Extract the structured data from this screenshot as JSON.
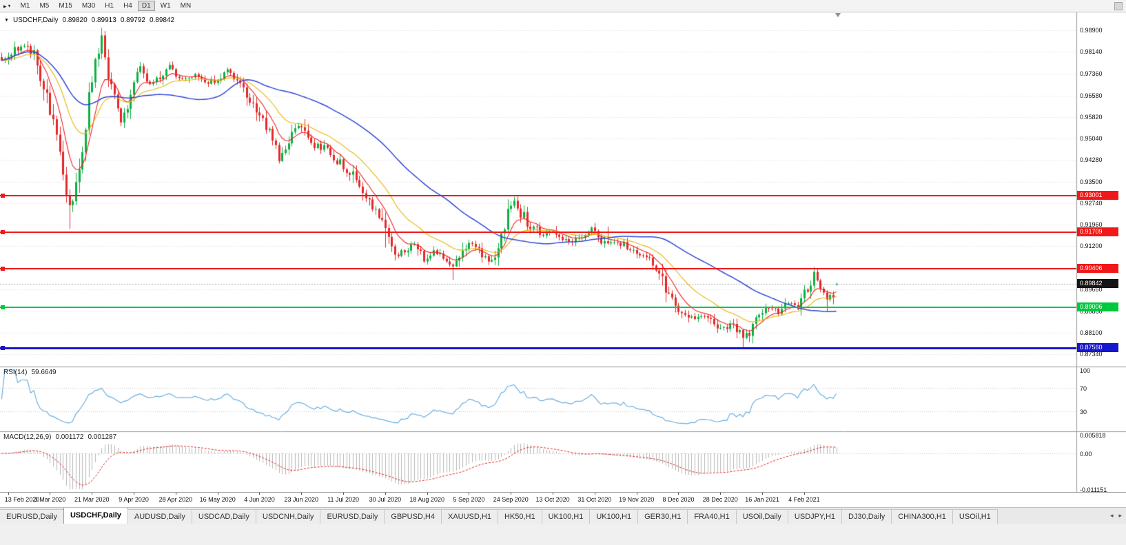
{
  "toolbar": {
    "timeframes": [
      "M1",
      "M5",
      "M15",
      "M30",
      "H1",
      "H4",
      "D1",
      "W1",
      "MN"
    ],
    "active_timeframe": "D1",
    "cursor_icon": "▸",
    "caret_icon": "▾"
  },
  "header": {
    "caret": "▼",
    "symbol": "USDCHF,Daily",
    "open": "0.89820",
    "high": "0.89913",
    "low": "0.89792",
    "close": "0.89842"
  },
  "main_axis": {
    "ticks": [
      "0.98900",
      "0.98140",
      "0.97360",
      "0.96580",
      "0.95820",
      "0.95040",
      "0.94280",
      "0.93500",
      "0.92740",
      "0.91960",
      "0.91200",
      "0.90420",
      "0.89660",
      "0.88880",
      "0.88100",
      "0.87340"
    ]
  },
  "levels": [
    {
      "label": "0.93001",
      "value": 0.93001,
      "color": "#f01818",
      "width": 2
    },
    {
      "label": "0.91709",
      "value": 0.91709,
      "color": "#f01818",
      "width": 2
    },
    {
      "label": "0.90406",
      "value": 0.90406,
      "color": "#f01818",
      "width": 2
    },
    {
      "label": "0.89006",
      "value": 0.89006,
      "color": "#00c83c",
      "width": 2
    },
    {
      "label": "0.87560",
      "value": 0.8756,
      "color": "#1616cc",
      "width": 3
    }
  ],
  "current_price": {
    "label": "0.89842",
    "value": 0.89842,
    "badge_color": "#151515"
  },
  "rsi": {
    "name": "RSI(14)",
    "value": "59.6649",
    "color": "#68aee0",
    "levels": [
      70,
      30
    ],
    "axis": [
      {
        "label": "100",
        "v": 100
      },
      {
        "label": "70",
        "v": 70
      },
      {
        "label": "30",
        "v": 30
      }
    ]
  },
  "macd": {
    "name": "MACD(12,26,9)",
    "value_main": "0.001172",
    "value_signal": "0.001287",
    "hist_color": "#b6b6b6",
    "signal_color": "#e02020",
    "axis": [
      {
        "label": "0.005818",
        "v": 0.005818
      },
      {
        "label": "0.00",
        "v": 0
      },
      {
        "label": "-0.011151",
        "v": -0.011151
      }
    ]
  },
  "dates": [
    "13 Feb 2020",
    "3 Mar 2020",
    "21 Mar 2020",
    "9 Apr 2020",
    "28 Apr 2020",
    "16 May 2020",
    "4 Jun 2020",
    "23 Jun 2020",
    "11 Jul 2020",
    "30 Jul 2020",
    "18 Aug 2020",
    "5 Sep 2020",
    "24 Sep 2020",
    "13 Oct 2020",
    "31 Oct 2020",
    "19 Nov 2020",
    "8 Dec 2020",
    "28 Dec 2020",
    "16 Jan 2021",
    "4 Feb 2021"
  ],
  "tabs": {
    "items": [
      {
        "label": "EURUSD,Daily",
        "active": false
      },
      {
        "label": "USDCHF,Daily",
        "active": true
      },
      {
        "label": "AUDUSD,Daily",
        "active": false
      },
      {
        "label": "USDCAD,Daily",
        "active": false
      },
      {
        "label": "USDCNH,Daily",
        "active": false
      },
      {
        "label": "EURUSD,Daily",
        "active": false
      },
      {
        "label": "GBPUSD,H4",
        "active": false
      },
      {
        "label": "XAUUSD,H1",
        "active": false
      },
      {
        "label": "HK50,H1",
        "active": false
      },
      {
        "label": "UK100,H1",
        "active": false
      },
      {
        "label": "UK100,H1",
        "active": false
      },
      {
        "label": "GER30,H1",
        "active": false
      },
      {
        "label": "FRA40,H1",
        "active": false
      },
      {
        "label": "USOil,Daily",
        "active": false
      },
      {
        "label": "USDJPY,H1",
        "active": false
      },
      {
        "label": "DJ30,Daily",
        "active": false
      },
      {
        "label": "CHINA300,H1",
        "active": false
      },
      {
        "label": "USOil,H1",
        "active": false
      }
    ],
    "scroll_left": "◂",
    "scroll_right": "▸"
  },
  "chart_data": {
    "type": "candlestick",
    "title": "USDCHF,Daily",
    "symbol": "USDCHF",
    "timeframe": "Daily",
    "current_ohlc": {
      "open": 0.8982,
      "high": 0.89913,
      "low": 0.89792,
      "close": 0.89842
    },
    "ylim": [
      0.869,
      0.9955
    ],
    "candle_count": 260,
    "x_tick_labels": [
      "13 Feb 2020",
      "3 Mar 2020",
      "21 Mar 2020",
      "9 Apr 2020",
      "28 Apr 2020",
      "16 May 2020",
      "4 Jun 2020",
      "23 Jun 2020",
      "11 Jul 2020",
      "30 Jul 2020",
      "18 Aug 2020",
      "5 Sep 2020",
      "24 Sep 2020",
      "13 Oct 2020",
      "31 Oct 2020",
      "19 Nov 2020",
      "8 Dec 2020",
      "28 Dec 2020",
      "16 Jan 2021",
      "4 Feb 2021"
    ],
    "x_tick_candle_indices": [
      2,
      15,
      28,
      41,
      54,
      67,
      80,
      93,
      106,
      119,
      132,
      145,
      158,
      171,
      184,
      197,
      210,
      223,
      236,
      249
    ],
    "price_path_anchors": [
      [
        0,
        0.978
      ],
      [
        3,
        0.9812
      ],
      [
        6,
        0.9835
      ],
      [
        8,
        0.9842
      ],
      [
        10,
        0.98
      ],
      [
        12,
        0.971
      ],
      [
        14,
        0.964
      ],
      [
        16,
        0.957
      ],
      [
        18,
        0.948
      ],
      [
        20,
        0.933
      ],
      [
        21,
        0.926
      ],
      [
        22,
        0.93
      ],
      [
        23,
        0.934
      ],
      [
        25,
        0.948
      ],
      [
        27,
        0.964
      ],
      [
        29,
        0.979
      ],
      [
        31,
        0.9855
      ],
      [
        33,
        0.972
      ],
      [
        35,
        0.964
      ],
      [
        37,
        0.957
      ],
      [
        39,
        0.963
      ],
      [
        41,
        0.97
      ],
      [
        43,
        0.9755
      ],
      [
        46,
        0.97
      ],
      [
        49,
        0.9728
      ],
      [
        52,
        0.9768
      ],
      [
        56,
        0.9712
      ],
      [
        60,
        0.9735
      ],
      [
        64,
        0.97
      ],
      [
        67,
        0.9722
      ],
      [
        70,
        0.9745
      ],
      [
        74,
        0.9705
      ],
      [
        78,
        0.9625
      ],
      [
        80,
        0.96
      ],
      [
        83,
        0.9525
      ],
      [
        86,
        0.943
      ],
      [
        89,
        0.951
      ],
      [
        92,
        0.9555
      ],
      [
        96,
        0.9485
      ],
      [
        100,
        0.947
      ],
      [
        104,
        0.9425
      ],
      [
        108,
        0.9385
      ],
      [
        112,
        0.931
      ],
      [
        116,
        0.9255
      ],
      [
        119,
        0.916
      ],
      [
        122,
        0.9085
      ],
      [
        125,
        0.9105
      ],
      [
        128,
        0.9135
      ],
      [
        131,
        0.9065
      ],
      [
        134,
        0.9105
      ],
      [
        137,
        0.9085
      ],
      [
        140,
        0.9045
      ],
      [
        143,
        0.9095
      ],
      [
        145,
        0.913
      ],
      [
        148,
        0.9105
      ],
      [
        151,
        0.9065
      ],
      [
        154,
        0.9125
      ],
      [
        157,
        0.9235
      ],
      [
        159,
        0.9285
      ],
      [
        161,
        0.924
      ],
      [
        163,
        0.9205
      ],
      [
        165,
        0.9185
      ],
      [
        168,
        0.9155
      ],
      [
        171,
        0.918
      ],
      [
        174,
        0.9145
      ],
      [
        177,
        0.9132
      ],
      [
        180,
        0.9162
      ],
      [
        183,
        0.918
      ],
      [
        185,
        0.9152
      ],
      [
        188,
        0.9125
      ],
      [
        191,
        0.9138
      ],
      [
        194,
        0.9115
      ],
      [
        197,
        0.9102
      ],
      [
        200,
        0.9082
      ],
      [
        203,
        0.9045
      ],
      [
        206,
        0.8965
      ],
      [
        209,
        0.8905
      ],
      [
        212,
        0.8882
      ],
      [
        215,
        0.8855
      ],
      [
        218,
        0.8872
      ],
      [
        221,
        0.8845
      ],
      [
        224,
        0.8825
      ],
      [
        227,
        0.8845
      ],
      [
        230,
        0.8795
      ],
      [
        232,
        0.8815
      ],
      [
        235,
        0.8872
      ],
      [
        238,
        0.8902
      ],
      [
        241,
        0.8885
      ],
      [
        244,
        0.8922
      ],
      [
        247,
        0.8905
      ],
      [
        250,
        0.8965
      ],
      [
        252,
        0.9028
      ],
      [
        254,
        0.8992
      ],
      [
        256,
        0.8935
      ],
      [
        258,
        0.8952
      ],
      [
        259,
        0.89842
      ]
    ],
    "spikes": [
      {
        "i": 8,
        "high": 0.9852
      },
      {
        "i": 21,
        "low": 0.9182
      },
      {
        "i": 31,
        "high": 0.989
      },
      {
        "i": 119,
        "low": 0.9115
      },
      {
        "i": 140,
        "low": 0.9
      },
      {
        "i": 159,
        "high": 0.9296
      },
      {
        "i": 188,
        "high": 0.919
      },
      {
        "i": 230,
        "low": 0.8757
      },
      {
        "i": 252,
        "high": 0.9046
      },
      {
        "i": 256,
        "low": 0.8888
      }
    ],
    "horizontal_levels": [
      0.93001,
      0.91709,
      0.90406,
      0.89006,
      0.8756
    ],
    "moving_averages": [
      {
        "type": "ema",
        "period": 8,
        "color": "#f02020"
      },
      {
        "type": "ema",
        "period": 20,
        "color": "#e8b400"
      },
      {
        "type": "sma",
        "period": 50,
        "color": "#3048d8"
      }
    ],
    "indicators": {
      "rsi_period": 14,
      "macd_fast": 12,
      "macd_slow": 26,
      "macd_signal": 9
    },
    "colors": {
      "up": "#0cb040",
      "down": "#e42828",
      "grid": "#dadada",
      "last_price_line": "#b0b0b0"
    }
  }
}
